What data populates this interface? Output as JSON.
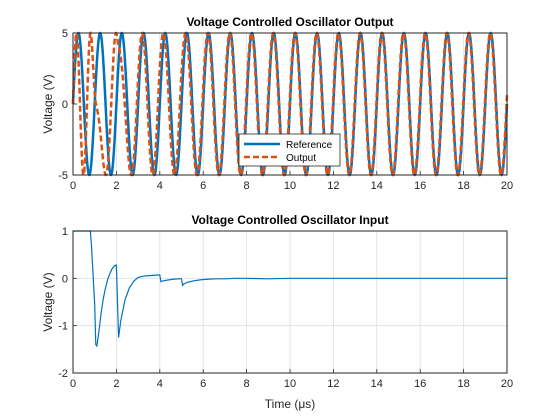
{
  "chart_data": [
    {
      "type": "line",
      "title": "Voltage Controlled Oscillator Output",
      "xlabel": "",
      "ylabel": "Voltage (V)",
      "xlim": [
        0,
        20
      ],
      "ylim": [
        -5,
        5
      ],
      "xticks": [
        "0",
        "2",
        "4",
        "6",
        "8",
        "10",
        "12",
        "14",
        "16",
        "18",
        "20"
      ],
      "yticks": [
        "-5",
        "0",
        "5"
      ],
      "grid": true,
      "legend": "lower-right",
      "series": [
        {
          "name": "Reference",
          "style": "solid",
          "color": "#0072BD",
          "description_values": {
            "amplitude": 5,
            "frequency_MHz": 1,
            "phase_start": "sine"
          },
          "x": [
            0,
            0.5,
            1,
            1.5,
            2,
            3,
            4,
            5,
            6,
            7,
            8,
            9,
            10,
            11,
            12,
            13,
            14,
            15,
            16,
            17,
            18,
            19,
            20
          ],
          "y": [
            0,
            0,
            0,
            0,
            0,
            0,
            0,
            0,
            0,
            0,
            0,
            0,
            0,
            0,
            0,
            0,
            0,
            0,
            0,
            0,
            0,
            0,
            0
          ]
        },
        {
          "name": "Output",
          "style": "dashed",
          "color": "#D95319",
          "description_values": {
            "amplitude": 5
          },
          "x": [
            0,
            0.5,
            1,
            1.5,
            2,
            3,
            4,
            5,
            6,
            7,
            8,
            9,
            10,
            11,
            12,
            13,
            14,
            15,
            16,
            17,
            18,
            19,
            20
          ],
          "y": [
            0,
            0,
            0,
            0,
            0,
            0,
            0,
            0,
            0,
            0,
            0,
            0,
            0,
            0,
            0,
            0,
            0,
            0,
            0,
            0,
            0,
            0,
            0
          ]
        }
      ]
    },
    {
      "type": "line",
      "title": "Voltage Controlled Oscillator Input",
      "xlabel": "Time (μs)",
      "ylabel": "Voltage (V)",
      "xlim": [
        0,
        20
      ],
      "ylim": [
        -2,
        1
      ],
      "xticks": [
        "0",
        "2",
        "4",
        "6",
        "8",
        "10",
        "12",
        "14",
        "16",
        "18",
        "20"
      ],
      "yticks": [
        "-2",
        "-1",
        "0",
        "1"
      ],
      "grid": true,
      "series": [
        {
          "color": "#0072BD",
          "x": [
            0,
            0.8,
            0.85,
            1.0,
            1.05,
            1.1,
            1.2,
            1.3,
            1.4,
            1.5,
            1.6,
            1.7,
            1.8,
            1.9,
            2.0,
            2.05,
            2.1,
            2.2,
            2.4,
            2.6,
            2.8,
            3.0,
            3.3,
            3.6,
            3.9,
            4.0,
            4.05,
            4.1,
            4.3,
            4.6,
            4.9,
            5.0,
            5.05,
            5.1,
            5.3,
            5.6,
            5.9,
            6.2,
            6.6,
            7.0,
            7.5,
            8.0,
            9.0,
            10.0,
            12.0,
            14.0,
            16.0,
            18.0,
            20.0
          ],
          "y": [
            1.0,
            1.0,
            0.7,
            -0.55,
            -1.4,
            -1.43,
            -1.1,
            -0.72,
            -0.42,
            -0.2,
            -0.02,
            0.1,
            0.2,
            0.26,
            0.28,
            -0.5,
            -1.25,
            -0.9,
            -0.45,
            -0.2,
            -0.06,
            0.02,
            0.05,
            0.06,
            0.07,
            0.07,
            -0.07,
            -0.06,
            -0.04,
            -0.02,
            -0.01,
            -0.01,
            -0.15,
            -0.12,
            -0.08,
            -0.05,
            -0.03,
            -0.02,
            -0.01,
            -0.01,
            0.0,
            0.0,
            -0.01,
            0.0,
            0.0,
            0.0,
            0.0,
            0.0,
            0.0
          ]
        }
      ]
    }
  ]
}
